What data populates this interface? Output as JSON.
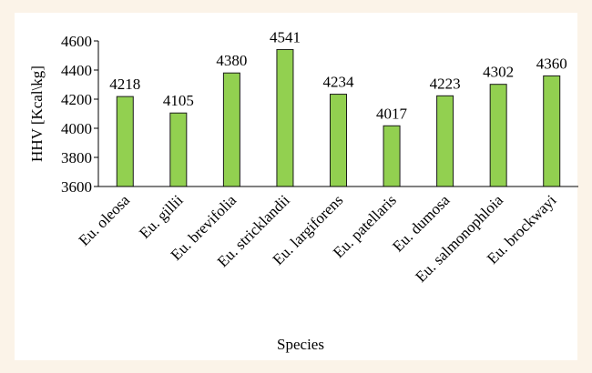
{
  "chart_data": {
    "type": "bar",
    "x_label": "Species",
    "y_label": "HHV [Kcal\\kg]",
    "categories": [
      "Eu. oleosa",
      "Eu. gillii",
      "Eu. brevifolia",
      "Eu. stricklandii",
      "Eu. largiforens",
      "Eu. patellaris",
      "Eu. dumosa",
      "Eu. salmonophloia",
      "Eu. brockwayi"
    ],
    "values": [
      4218,
      4105,
      4380,
      4541,
      4234,
      4017,
      4223,
      4302,
      4360
    ],
    "color": "#92d050",
    "ylim": [
      3600,
      4600
    ],
    "yticks": [
      3600,
      3800,
      4000,
      4200,
      4400,
      4600
    ]
  }
}
